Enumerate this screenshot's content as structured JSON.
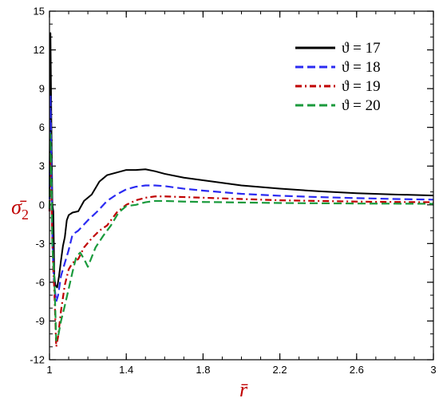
{
  "chart_data": {
    "type": "line",
    "title": "",
    "xlabel": "r̄",
    "ylabel_main": "σ̄",
    "ylabel_sub": "2",
    "xlim": [
      1,
      3
    ],
    "ylim": [
      -12,
      15
    ],
    "xticks": [
      "1",
      "1.4",
      "1.8",
      "2.2",
      "2.6",
      "3"
    ],
    "xtick_values": [
      1,
      1.4,
      1.8,
      2.2,
      2.6,
      3
    ],
    "yticks": [
      "-12",
      "-9",
      "-6",
      "-3",
      "0",
      "3",
      "6",
      "9",
      "12",
      "15"
    ],
    "ytick_values": [
      -12,
      -9,
      -6,
      -3,
      0,
      3,
      6,
      9,
      12,
      15
    ],
    "x_minor_step": 0.1,
    "y_minor_step": 1,
    "grid": false,
    "legend_position": "top-right",
    "axis_title_color": "#c00000",
    "series": [
      {
        "name": "ϑ = 17",
        "color": "#000000",
        "dash": "solid",
        "points": [
          [
            1.0,
            0.5
          ],
          [
            1.005,
            13.3
          ],
          [
            1.01,
            6.0
          ],
          [
            1.015,
            0.0
          ],
          [
            1.02,
            -0.5
          ],
          [
            1.025,
            -5.5
          ],
          [
            1.03,
            -6.2
          ],
          [
            1.04,
            -6.4
          ],
          [
            1.05,
            -5.5
          ],
          [
            1.06,
            -4.3
          ],
          [
            1.07,
            -3.2
          ],
          [
            1.08,
            -2.5
          ],
          [
            1.09,
            -1.2
          ],
          [
            1.1,
            -0.8
          ],
          [
            1.12,
            -0.6
          ],
          [
            1.15,
            -0.5
          ],
          [
            1.18,
            0.3
          ],
          [
            1.22,
            0.8
          ],
          [
            1.26,
            1.8
          ],
          [
            1.3,
            2.3
          ],
          [
            1.35,
            2.5
          ],
          [
            1.4,
            2.7
          ],
          [
            1.45,
            2.7
          ],
          [
            1.5,
            2.75
          ],
          [
            1.55,
            2.6
          ],
          [
            1.6,
            2.4
          ],
          [
            1.7,
            2.1
          ],
          [
            1.8,
            1.9
          ],
          [
            2.0,
            1.5
          ],
          [
            2.2,
            1.25
          ],
          [
            2.4,
            1.05
          ],
          [
            2.6,
            0.9
          ],
          [
            2.8,
            0.8
          ],
          [
            3.0,
            0.72
          ]
        ]
      },
      {
        "name": "ϑ = 18",
        "color": "#2b2bf2",
        "dash": "long-dash",
        "points": [
          [
            1.0,
            -0.5
          ],
          [
            1.005,
            8.5
          ],
          [
            1.01,
            3.0
          ],
          [
            1.015,
            -2.5
          ],
          [
            1.02,
            -5.0
          ],
          [
            1.025,
            -6.2
          ],
          [
            1.035,
            -7.5
          ],
          [
            1.045,
            -7.0
          ],
          [
            1.06,
            -5.5
          ],
          [
            1.08,
            -4.5
          ],
          [
            1.1,
            -3.5
          ],
          [
            1.12,
            -2.3
          ],
          [
            1.15,
            -2.0
          ],
          [
            1.2,
            -1.2
          ],
          [
            1.25,
            -0.5
          ],
          [
            1.3,
            0.3
          ],
          [
            1.35,
            0.8
          ],
          [
            1.4,
            1.2
          ],
          [
            1.45,
            1.4
          ],
          [
            1.5,
            1.5
          ],
          [
            1.55,
            1.5
          ],
          [
            1.6,
            1.45
          ],
          [
            1.7,
            1.25
          ],
          [
            1.8,
            1.1
          ],
          [
            2.0,
            0.85
          ],
          [
            2.2,
            0.7
          ],
          [
            2.4,
            0.6
          ],
          [
            2.6,
            0.52
          ],
          [
            2.8,
            0.45
          ],
          [
            3.0,
            0.4
          ]
        ]
      },
      {
        "name": "ϑ = 19",
        "color": "#c00000",
        "dash": "dash-dot",
        "points": [
          [
            1.0,
            -0.5
          ],
          [
            1.005,
            3.5
          ],
          [
            1.01,
            1.0
          ],
          [
            1.015,
            -3.0
          ],
          [
            1.02,
            -5.0
          ],
          [
            1.025,
            -6.5
          ],
          [
            1.035,
            -11.0
          ],
          [
            1.045,
            -10.2
          ],
          [
            1.06,
            -8.2
          ],
          [
            1.08,
            -6.2
          ],
          [
            1.1,
            -5.0
          ],
          [
            1.12,
            -4.5
          ],
          [
            1.15,
            -4.2
          ],
          [
            1.18,
            -3.3
          ],
          [
            1.22,
            -2.6
          ],
          [
            1.26,
            -2.0
          ],
          [
            1.3,
            -1.6
          ],
          [
            1.35,
            -0.6
          ],
          [
            1.4,
            0.0
          ],
          [
            1.45,
            0.35
          ],
          [
            1.5,
            0.55
          ],
          [
            1.55,
            0.65
          ],
          [
            1.6,
            0.65
          ],
          [
            1.7,
            0.6
          ],
          [
            1.8,
            0.55
          ],
          [
            2.0,
            0.45
          ],
          [
            2.2,
            0.35
          ],
          [
            2.4,
            0.3
          ],
          [
            2.6,
            0.25
          ],
          [
            2.8,
            0.22
          ],
          [
            3.0,
            0.2
          ]
        ]
      },
      {
        "name": "ϑ = 20",
        "color": "#1a9a3c",
        "dash": "long-dash",
        "points": [
          [
            1.0,
            -0.3
          ],
          [
            1.005,
            5.5
          ],
          [
            1.01,
            2.0
          ],
          [
            1.015,
            -3.2
          ],
          [
            1.02,
            -4.5
          ],
          [
            1.025,
            -5.5
          ],
          [
            1.035,
            -10.5
          ],
          [
            1.045,
            -10.2
          ],
          [
            1.06,
            -9.0
          ],
          [
            1.08,
            -7.8
          ],
          [
            1.1,
            -6.5
          ],
          [
            1.12,
            -5.2
          ],
          [
            1.14,
            -4.0
          ],
          [
            1.16,
            -3.7
          ],
          [
            1.18,
            -4.2
          ],
          [
            1.2,
            -4.8
          ],
          [
            1.24,
            -3.3
          ],
          [
            1.28,
            -2.4
          ],
          [
            1.32,
            -1.6
          ],
          [
            1.36,
            -0.6
          ],
          [
            1.4,
            -0.1
          ],
          [
            1.45,
            0.0
          ],
          [
            1.5,
            0.2
          ],
          [
            1.55,
            0.3
          ],
          [
            1.6,
            0.3
          ],
          [
            1.7,
            0.25
          ],
          [
            1.8,
            0.22
          ],
          [
            2.0,
            0.18
          ],
          [
            2.2,
            0.14
          ],
          [
            2.4,
            0.12
          ],
          [
            2.6,
            0.1
          ],
          [
            2.8,
            0.09
          ],
          [
            3.0,
            0.08
          ]
        ]
      }
    ]
  }
}
